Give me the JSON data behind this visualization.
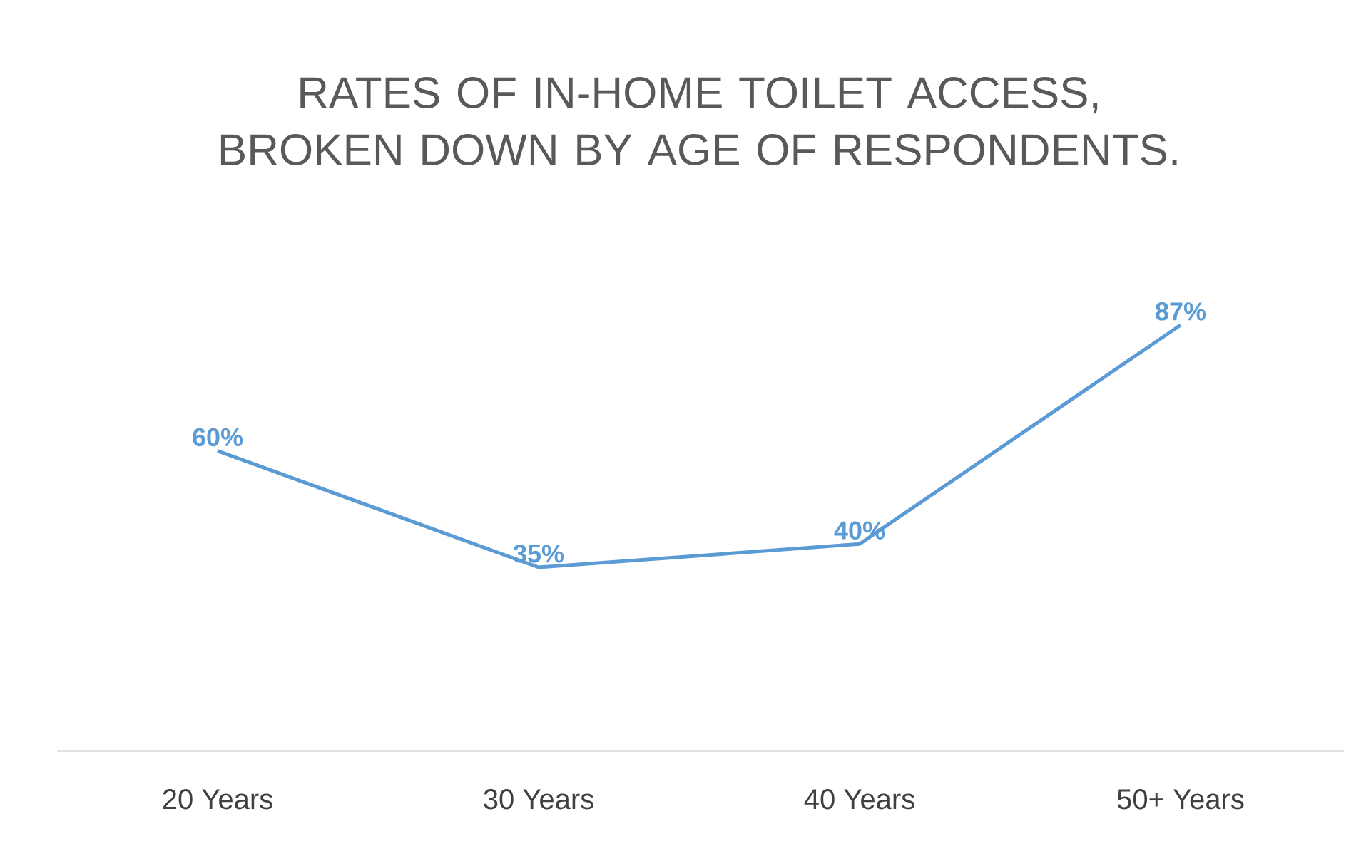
{
  "chart_data": {
    "type": "line",
    "title": "RATES OF IN-HOME TOILET ACCESS, BROKEN DOWN BY AGE OF RESPONDENTS.",
    "categories": [
      "20 Years",
      "30 Years",
      "40 Years",
      "50+ Years"
    ],
    "values": [
      60,
      35,
      40,
      87
    ],
    "value_labels": [
      "60%",
      "35%",
      "40%",
      "87%"
    ],
    "color": "#5b9bd5",
    "marker": "none"
  }
}
